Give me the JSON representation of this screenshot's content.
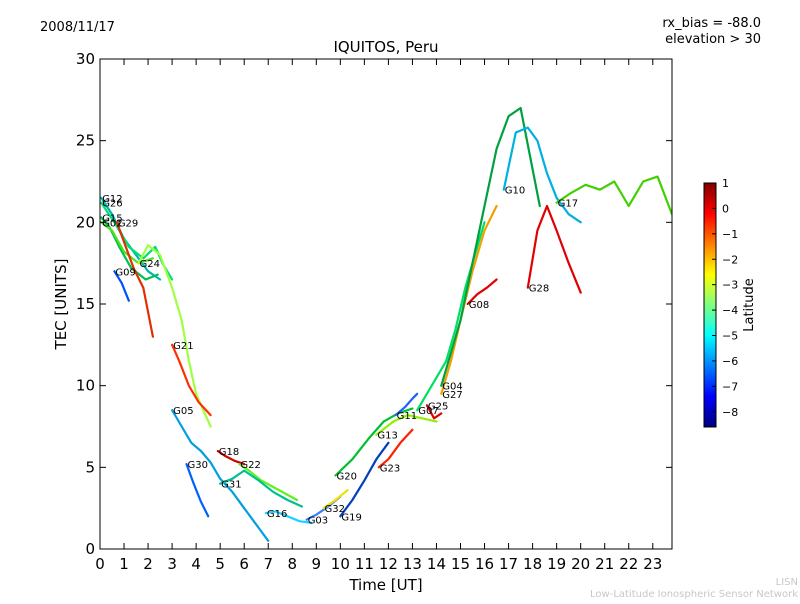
{
  "header": {
    "date": "2008/11/17",
    "rx_bias": "rx_bias = -88.0",
    "elevation": "elevation > 30"
  },
  "footer": {
    "line1": "LISN",
    "line2": "Low-Latitude Ionospheric Sensor Network"
  },
  "colorbar": {
    "label": "Latitude",
    "min": -8.6,
    "max": 1,
    "ticks": [
      1,
      0,
      -1,
      -2,
      -3,
      -4,
      -5,
      -6,
      -7,
      -8
    ],
    "colors": [
      "#00007f",
      "#0000ff",
      "#007fff",
      "#00ffff",
      "#7fff7f",
      "#ffff00",
      "#ff7f00",
      "#ff0000",
      "#7f0000"
    ]
  },
  "chart_data": {
    "type": "line",
    "title": "IQUITOS, Peru",
    "xlabel": "Time [UT]",
    "ylabel": "TEC [UNITS]",
    "xlim": [
      0,
      23.8
    ],
    "ylim": [
      0,
      30
    ],
    "xticks": [
      0,
      1,
      2,
      3,
      4,
      5,
      6,
      7,
      8,
      9,
      10,
      11,
      12,
      13,
      14,
      15,
      16,
      17,
      18,
      19,
      20,
      21,
      22,
      23
    ],
    "yticks": [
      0,
      5,
      10,
      15,
      20,
      25,
      30
    ],
    "grid": false,
    "series": [
      {
        "name": "G12",
        "color": "#00b4b4",
        "x": [
          0.05,
          0.5,
          1.0,
          1.5,
          2.0,
          2.5
        ],
        "y": [
          21.5,
          20.5,
          19.0,
          18.0,
          17.0,
          16.5
        ]
      },
      {
        "name": "G26",
        "color": "#00e070",
        "x": [
          0.05,
          0.6,
          1.2,
          1.8,
          2.3,
          2.6,
          3.0
        ],
        "y": [
          21.2,
          20.0,
          18.5,
          17.8,
          18.5,
          17.5,
          16.5
        ]
      },
      {
        "name": "G15",
        "color": "#00c050",
        "x": [
          0.05,
          0.4,
          0.8,
          1.3,
          1.9,
          2.4
        ],
        "y": [
          20.3,
          19.7,
          18.5,
          17.2,
          16.5,
          16.8
        ]
      },
      {
        "name": "G02",
        "color": "#50e020",
        "x": [
          0.05,
          0.5,
          1.0,
          1.6,
          2.2
        ],
        "y": [
          20.0,
          19.5,
          18.2,
          17.5,
          17.8
        ]
      },
      {
        "name": "G29",
        "color": "#e03000",
        "x": [
          0.7,
          1.0,
          1.4,
          1.8,
          2.2
        ],
        "y": [
          20.0,
          18.8,
          17.2,
          16.0,
          13.0
        ]
      },
      {
        "name": "G09",
        "color": "#0050ff",
        "x": [
          0.6,
          0.9,
          1.2
        ],
        "y": [
          17.0,
          16.3,
          15.2
        ]
      },
      {
        "name": "G24",
        "color": "#a0ff40",
        "x": [
          1.6,
          2.0,
          2.5,
          3.0,
          3.4,
          3.7,
          4.0,
          4.3,
          4.6
        ],
        "y": [
          17.5,
          18.6,
          18.0,
          16.0,
          14.0,
          11.5,
          9.5,
          8.5,
          7.5
        ]
      },
      {
        "name": "G21",
        "color": "#ff3000",
        "x": [
          3.0,
          3.3,
          3.7,
          4.1,
          4.6
        ],
        "y": [
          12.5,
          11.5,
          10.0,
          9.0,
          8.2
        ]
      },
      {
        "name": "G05",
        "color": "#00a0e0",
        "x": [
          3.0,
          3.4,
          3.8,
          4.2,
          4.6,
          5.0,
          5.5,
          6.0,
          6.5,
          7.0
        ],
        "y": [
          8.5,
          7.5,
          6.5,
          6.0,
          5.3,
          4.3,
          3.5,
          2.5,
          1.5,
          0.5
        ]
      },
      {
        "name": "G30",
        "color": "#0060ff",
        "x": [
          3.6,
          3.9,
          4.2,
          4.5
        ],
        "y": [
          5.2,
          4.0,
          2.9,
          2.0
        ]
      },
      {
        "name": "G18",
        "color": "#d00000",
        "x": [
          4.9,
          5.2,
          5.6,
          6.0
        ],
        "y": [
          6.0,
          5.7,
          5.4,
          5.2
        ]
      },
      {
        "name": "G22",
        "color": "#60f020",
        "x": [
          5.8,
          6.2,
          6.7,
          7.2,
          7.7,
          8.2
        ],
        "y": [
          5.2,
          4.8,
          4.2,
          3.8,
          3.4,
          3.0
        ]
      },
      {
        "name": "G31",
        "color": "#00c090",
        "x": [
          5.0,
          5.5,
          6.0,
          6.6,
          7.2,
          7.8,
          8.4
        ],
        "y": [
          4.0,
          4.3,
          4.8,
          4.2,
          3.5,
          3.0,
          2.6
        ]
      },
      {
        "name": "G16",
        "color": "#20d0ff",
        "x": [
          6.9,
          7.3,
          7.8,
          8.3,
          8.8
        ],
        "y": [
          2.2,
          2.3,
          2.0,
          1.7,
          1.6
        ]
      },
      {
        "name": "G03",
        "color": "#3080ff",
        "x": [
          8.6,
          9.0,
          9.5,
          10.0
        ],
        "y": [
          1.8,
          2.1,
          2.6,
          3.2
        ]
      },
      {
        "name": "G32",
        "color": "#f0e000",
        "x": [
          9.3,
          9.8,
          10.3
        ],
        "y": [
          2.5,
          3.0,
          3.6
        ]
      },
      {
        "name": "G19",
        "color": "#0040c0",
        "x": [
          10.0,
          10.5,
          11.0,
          11.5,
          12.0
        ],
        "y": [
          2.0,
          3.0,
          4.2,
          5.5,
          6.5
        ]
      },
      {
        "name": "G20",
        "color": "#00c030",
        "x": [
          9.8,
          10.5,
          11.2,
          11.8,
          12.4,
          13.0
        ],
        "y": [
          4.5,
          5.5,
          6.8,
          7.8,
          8.3,
          8.6
        ]
      },
      {
        "name": "G23",
        "color": "#ff2000",
        "x": [
          11.6,
          12.0,
          12.5,
          13.0
        ],
        "y": [
          5.0,
          5.5,
          6.5,
          7.3
        ]
      },
      {
        "name": "G11",
        "color": "#2060ff",
        "x": [
          12.3,
          12.7,
          13.0,
          13.2
        ],
        "y": [
          8.2,
          8.7,
          9.2,
          9.5
        ]
      },
      {
        "name": "G13",
        "color": "#90f000",
        "x": [
          11.5,
          12.2,
          12.8,
          13.4,
          14.0
        ],
        "y": [
          7.0,
          7.8,
          8.2,
          8.0,
          7.8
        ]
      },
      {
        "name": "G25",
        "color": "#e00000",
        "x": [
          13.6,
          13.9,
          14.2
        ],
        "y": [
          8.8,
          8.0,
          8.3
        ]
      },
      {
        "name": "G07",
        "color": "#00e060",
        "x": [
          13.2,
          13.8,
          14.4,
          14.8,
          15.2,
          15.6,
          16.0
        ],
        "y": [
          8.5,
          10.0,
          11.5,
          13.5,
          16.0,
          18.0,
          20.0
        ]
      },
      {
        "name": "G27",
        "color": "#f0a000",
        "x": [
          14.2,
          14.6,
          15.0,
          15.5,
          16.0,
          16.5
        ],
        "y": [
          9.5,
          11.5,
          14.0,
          17.0,
          19.5,
          21.0
        ]
      },
      {
        "name": "G08",
        "color": "#e00000",
        "x": [
          15.3,
          15.7,
          16.1,
          16.5
        ],
        "y": [
          15.0,
          15.6,
          16.0,
          16.5
        ]
      },
      {
        "name": "G04",
        "color": "#00a040",
        "x": [
          14.2,
          14.6,
          15.0,
          15.5,
          16.0,
          16.5,
          17.0,
          17.5,
          17.9,
          18.3
        ],
        "y": [
          10.0,
          12.0,
          14.0,
          17.5,
          21.0,
          24.5,
          26.5,
          27.0,
          24.0,
          21.0
        ]
      },
      {
        "name": "G28",
        "color": "#e00000",
        "x": [
          17.8,
          18.2,
          18.6,
          19.0,
          19.5,
          20.0
        ],
        "y": [
          16.0,
          19.5,
          21.0,
          19.5,
          17.5,
          15.7
        ]
      },
      {
        "name": "G10",
        "color": "#00b0e0",
        "x": [
          16.8,
          17.3,
          17.8,
          18.2,
          18.6,
          19.0,
          19.5,
          20.0
        ],
        "y": [
          22.0,
          25.5,
          25.8,
          25.0,
          23.0,
          21.5,
          20.5,
          20.0
        ]
      },
      {
        "name": "G17",
        "color": "#40d000",
        "x": [
          19.0,
          19.6,
          20.2,
          20.8,
          21.4,
          22.0,
          22.6,
          23.2,
          23.8
        ],
        "y": [
          21.2,
          21.8,
          22.3,
          22.0,
          22.5,
          21.0,
          22.5,
          22.8,
          20.5
        ]
      }
    ]
  }
}
